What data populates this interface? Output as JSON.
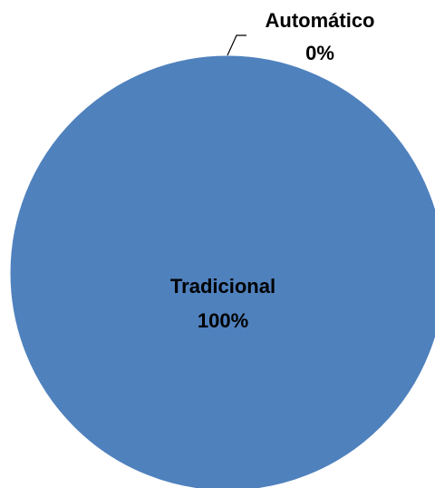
{
  "chart_data": {
    "type": "pie",
    "slices": [
      {
        "label": "Tradicional",
        "value": 100,
        "display": "100%",
        "color": "#4F81BD"
      },
      {
        "label": "Automático",
        "value": 0,
        "display": "0%",
        "color": "#4F81BD"
      }
    ],
    "title": "",
    "legend": "none"
  }
}
